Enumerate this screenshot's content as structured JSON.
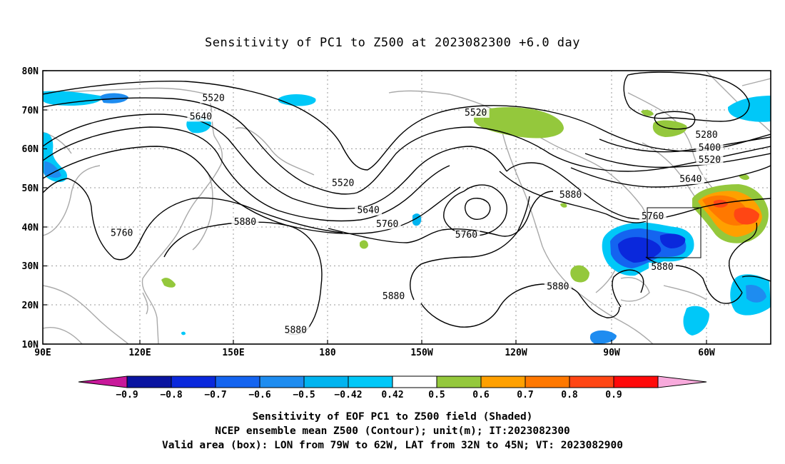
{
  "title": "Sensitivity of PC1 to Z500 at 2023082300 +6.0 day",
  "map": {
    "lat_labels": [
      "80N",
      "70N",
      "60N",
      "50N",
      "40N",
      "30N",
      "20N",
      "10N"
    ],
    "lon_labels": [
      "90E",
      "120E",
      "150E",
      "180",
      "150W",
      "120W",
      "90W",
      "60W"
    ],
    "contour_labels": [
      {
        "text": "5520",
        "lon": 144,
        "lat": 72.2
      },
      {
        "text": "5640",
        "lon": 140,
        "lat": 67.5
      },
      {
        "text": "5520",
        "lon": 227,
        "lat": 68.5
      },
      {
        "text": "5280",
        "lon": 300,
        "lat": 62.8
      },
      {
        "text": "5400",
        "lon": 301,
        "lat": 59.5
      },
      {
        "text": "5520",
        "lon": 301,
        "lat": 56.4
      },
      {
        "text": "5640",
        "lon": 295,
        "lat": 51.5
      },
      {
        "text": "5520",
        "lon": 185,
        "lat": 50.5
      },
      {
        "text": "5640",
        "lon": 193,
        "lat": 43.5
      },
      {
        "text": "5880",
        "lon": 257,
        "lat": 47.5
      },
      {
        "text": "5760",
        "lon": 283,
        "lat": 42.0
      },
      {
        "text": "5760",
        "lon": 199,
        "lat": 40.0
      },
      {
        "text": "5760",
        "lon": 224,
        "lat": 37.2
      },
      {
        "text": "5880",
        "lon": 154,
        "lat": 40.5
      },
      {
        "text": "5760",
        "lon": 115,
        "lat": 37.7
      },
      {
        "text": "5880",
        "lon": 286,
        "lat": 29.0
      },
      {
        "text": "5880",
        "lon": 253,
        "lat": 24.0
      },
      {
        "text": "5880",
        "lon": 201,
        "lat": 21.5
      },
      {
        "text": "5880",
        "lon": 170,
        "lat": 12.8
      }
    ]
  },
  "colorbar": {
    "tick_labels": [
      "−0.9",
      "−0.8",
      "−0.7",
      "−0.6",
      "−0.5",
      "−0.42",
      "0.42",
      "0.5",
      "0.6",
      "0.7",
      "0.8",
      "0.9"
    ],
    "colors": [
      "#c8189a",
      "#0a14a0",
      "#0a28dc",
      "#1464f0",
      "#1e8cf0",
      "#00b4f0",
      "#00c8f8",
      "#ffffff",
      "#94c83c",
      "#ffa000",
      "#ff7800",
      "#ff4614",
      "#ff0a0a",
      "#f8aadc"
    ]
  },
  "caption": {
    "line1": "Sensitivity of EOF PC1 to Z500 field (Shaded)",
    "line2": "NCEP ensemble mean Z500 (Contour); unit(m); IT:2023082300",
    "line3": "Valid area (box): LON from 79W to 62W, LAT from 32N to 45N; VT: 2023082900"
  }
}
